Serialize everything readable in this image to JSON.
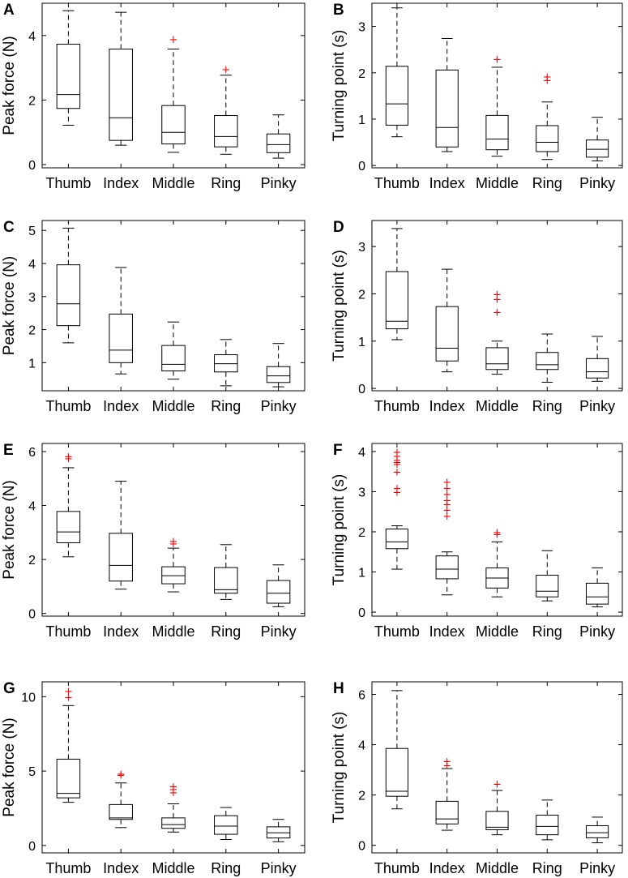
{
  "chart_data": [
    {
      "panel": "A",
      "type": "boxplot",
      "ylabel": "Peak force (N)",
      "categories": [
        "Thumb",
        "Index",
        "Middle",
        "Ring",
        "Pinky"
      ],
      "ylim": [
        -0.1,
        5.0
      ],
      "yticks": [
        0,
        2,
        4
      ],
      "boxes": [
        {
          "whislo": 1.22,
          "q1": 1.74,
          "med": 2.17,
          "q3": 3.73,
          "whishi": 4.77,
          "fliers": []
        },
        {
          "whislo": 0.6,
          "q1": 0.75,
          "med": 1.45,
          "q3": 3.58,
          "whishi": 4.72,
          "fliers": []
        },
        {
          "whislo": 0.38,
          "q1": 0.64,
          "med": 1.0,
          "q3": 1.83,
          "whishi": 3.58,
          "fliers": [
            3.9
          ]
        },
        {
          "whislo": 0.32,
          "q1": 0.55,
          "med": 0.87,
          "q3": 1.52,
          "whishi": 2.77,
          "fliers": [
            2.97
          ]
        },
        {
          "whislo": 0.2,
          "q1": 0.37,
          "med": 0.62,
          "q3": 0.95,
          "whishi": 1.54,
          "fliers": []
        }
      ]
    },
    {
      "panel": "B",
      "type": "boxplot",
      "ylabel": "Turning point (s)",
      "categories": [
        "Thumb",
        "Index",
        "Middle",
        "Ring",
        "Pinky"
      ],
      "ylim": [
        -0.05,
        3.5
      ],
      "yticks": [
        0,
        1,
        2,
        3
      ],
      "boxes": [
        {
          "whislo": 0.62,
          "q1": 0.87,
          "med": 1.33,
          "q3": 2.14,
          "whishi": 3.4,
          "fliers": []
        },
        {
          "whislo": 0.3,
          "q1": 0.4,
          "med": 0.82,
          "q3": 2.06,
          "whishi": 2.74,
          "fliers": []
        },
        {
          "whislo": 0.2,
          "q1": 0.34,
          "med": 0.57,
          "q3": 1.08,
          "whishi": 2.12,
          "fliers": [
            2.3
          ]
        },
        {
          "whislo": 0.13,
          "q1": 0.3,
          "med": 0.5,
          "q3": 0.86,
          "whishi": 1.37,
          "fliers": [
            1.85,
            1.93
          ]
        },
        {
          "whislo": 0.1,
          "q1": 0.18,
          "med": 0.35,
          "q3": 0.55,
          "whishi": 1.04,
          "fliers": []
        }
      ]
    },
    {
      "panel": "C",
      "type": "boxplot",
      "ylabel": "Peak force (N)",
      "categories": [
        "Thumb",
        "Index",
        "Middle",
        "Ring",
        "Pinky"
      ],
      "ylim": [
        0.15,
        5.3
      ],
      "yticks": [
        1,
        2,
        3,
        4,
        5
      ],
      "boxes": [
        {
          "whislo": 1.6,
          "q1": 2.12,
          "med": 2.78,
          "q3": 3.96,
          "whishi": 5.07,
          "fliers": []
        },
        {
          "whislo": 0.66,
          "q1": 1.0,
          "med": 1.38,
          "q3": 2.47,
          "whishi": 3.88,
          "fliers": []
        },
        {
          "whislo": 0.5,
          "q1": 0.75,
          "med": 0.95,
          "q3": 1.52,
          "whishi": 2.23,
          "fliers": []
        },
        {
          "whislo": 0.3,
          "q1": 0.72,
          "med": 0.97,
          "q3": 1.24,
          "whishi": 1.7,
          "fliers": []
        },
        {
          "whislo": 0.27,
          "q1": 0.4,
          "med": 0.6,
          "q3": 0.88,
          "whishi": 1.58,
          "fliers": []
        }
      ]
    },
    {
      "panel": "D",
      "type": "boxplot",
      "ylabel": "Turning point (s)",
      "categories": [
        "Thumb",
        "Index",
        "Middle",
        "Ring",
        "Pinky"
      ],
      "ylim": [
        -0.05,
        3.55
      ],
      "yticks": [
        0,
        1,
        2,
        3
      ],
      "boxes": [
        {
          "whislo": 1.03,
          "q1": 1.26,
          "med": 1.42,
          "q3": 2.47,
          "whishi": 3.38,
          "fliers": []
        },
        {
          "whislo": 0.35,
          "q1": 0.58,
          "med": 0.85,
          "q3": 1.73,
          "whishi": 2.52,
          "fliers": []
        },
        {
          "whislo": 0.3,
          "q1": 0.4,
          "med": 0.52,
          "q3": 0.86,
          "whishi": 1.0,
          "fliers": [
            1.62,
            1.9,
            2.0
          ]
        },
        {
          "whislo": 0.13,
          "q1": 0.4,
          "med": 0.5,
          "q3": 0.76,
          "whishi": 1.15,
          "fliers": []
        },
        {
          "whislo": 0.15,
          "q1": 0.22,
          "med": 0.35,
          "q3": 0.63,
          "whishi": 1.1,
          "fliers": []
        }
      ]
    },
    {
      "panel": "E",
      "type": "boxplot",
      "ylabel": "Peak force (N)",
      "categories": [
        "Thumb",
        "Index",
        "Middle",
        "Ring",
        "Pinky"
      ],
      "ylim": [
        -0.1,
        6.3
      ],
      "yticks": [
        0,
        2,
        4,
        6
      ],
      "boxes": [
        {
          "whislo": 2.1,
          "q1": 2.62,
          "med": 3.02,
          "q3": 3.78,
          "whishi": 5.4,
          "fliers": [
            5.76,
            5.84
          ]
        },
        {
          "whislo": 0.9,
          "q1": 1.2,
          "med": 1.78,
          "q3": 2.97,
          "whishi": 4.9,
          "fliers": []
        },
        {
          "whislo": 0.8,
          "q1": 1.1,
          "med": 1.4,
          "q3": 1.73,
          "whishi": 2.42,
          "fliers": [
            2.6,
            2.7
          ]
        },
        {
          "whislo": 0.52,
          "q1": 0.75,
          "med": 0.88,
          "q3": 1.7,
          "whishi": 2.55,
          "fliers": []
        },
        {
          "whislo": 0.25,
          "q1": 0.38,
          "med": 0.75,
          "q3": 1.22,
          "whishi": 1.8,
          "fliers": []
        }
      ]
    },
    {
      "panel": "F",
      "type": "boxplot",
      "ylabel": "Turning point (s)",
      "categories": [
        "Thumb",
        "Index",
        "Middle",
        "Ring",
        "Pinky"
      ],
      "ylim": [
        -0.1,
        4.2
      ],
      "yticks": [
        0,
        1,
        2,
        3,
        4
      ],
      "boxes": [
        {
          "whislo": 1.07,
          "q1": 1.58,
          "med": 1.75,
          "q3": 2.07,
          "whishi": 2.15,
          "fliers": [
            3.0,
            3.1,
            3.5,
            3.7,
            3.75,
            3.8,
            3.9,
            4.0
          ]
        },
        {
          "whislo": 0.43,
          "q1": 0.83,
          "med": 1.07,
          "q3": 1.4,
          "whishi": 1.5,
          "fliers": [
            2.4,
            2.55,
            2.7,
            2.8,
            2.95,
            3.1,
            3.25
          ]
        },
        {
          "whislo": 0.38,
          "q1": 0.6,
          "med": 0.85,
          "q3": 1.1,
          "whishi": 1.75,
          "fliers": [
            1.95,
            2.0
          ]
        },
        {
          "whislo": 0.28,
          "q1": 0.38,
          "med": 0.52,
          "q3": 0.92,
          "whishi": 1.53,
          "fliers": []
        },
        {
          "whislo": 0.13,
          "q1": 0.2,
          "med": 0.38,
          "q3": 0.72,
          "whishi": 1.1,
          "fliers": []
        }
      ]
    },
    {
      "panel": "G",
      "type": "boxplot",
      "ylabel": "Peak force (N)",
      "categories": [
        "Thumb",
        "Index",
        "Middle",
        "Ring",
        "Pinky"
      ],
      "ylim": [
        -0.5,
        11.0
      ],
      "yticks": [
        0,
        5,
        10
      ],
      "boxes": [
        {
          "whislo": 2.9,
          "q1": 3.2,
          "med": 3.5,
          "q3": 5.8,
          "whishi": 9.4,
          "fliers": [
            10.0,
            10.4
          ]
        },
        {
          "whislo": 1.2,
          "q1": 1.75,
          "med": 1.85,
          "q3": 2.75,
          "whishi": 4.2,
          "fliers": [
            4.75,
            4.85
          ]
        },
        {
          "whislo": 0.9,
          "q1": 1.15,
          "med": 1.4,
          "q3": 1.85,
          "whishi": 2.8,
          "fliers": [
            3.6,
            3.8,
            4.0
          ]
        },
        {
          "whislo": 0.4,
          "q1": 0.75,
          "med": 1.3,
          "q3": 2.0,
          "whishi": 2.55,
          "fliers": []
        },
        {
          "whislo": 0.25,
          "q1": 0.5,
          "med": 0.85,
          "q3": 1.25,
          "whishi": 1.75,
          "fliers": []
        }
      ]
    },
    {
      "panel": "H",
      "type": "boxplot",
      "ylabel": "Turning point (s)",
      "categories": [
        "Thumb",
        "Index",
        "Middle",
        "Ring",
        "Pinky"
      ],
      "ylim": [
        -0.3,
        6.5
      ],
      "yticks": [
        0,
        2,
        4,
        6
      ],
      "boxes": [
        {
          "whislo": 1.45,
          "q1": 1.95,
          "med": 2.15,
          "q3": 3.85,
          "whishi": 6.15,
          "fliers": []
        },
        {
          "whislo": 0.6,
          "q1": 0.85,
          "med": 1.05,
          "q3": 1.75,
          "whishi": 3.05,
          "fliers": [
            3.2,
            3.35
          ]
        },
        {
          "whislo": 0.42,
          "q1": 0.62,
          "med": 0.72,
          "q3": 1.35,
          "whishi": 2.18,
          "fliers": [
            2.45
          ]
        },
        {
          "whislo": 0.22,
          "q1": 0.42,
          "med": 0.75,
          "q3": 1.2,
          "whishi": 1.8,
          "fliers": []
        },
        {
          "whislo": 0.1,
          "q1": 0.3,
          "med": 0.5,
          "q3": 0.78,
          "whishi": 1.12,
          "fliers": []
        }
      ]
    }
  ],
  "colors": {
    "box": "#000000",
    "outlier": "#ff0000"
  }
}
